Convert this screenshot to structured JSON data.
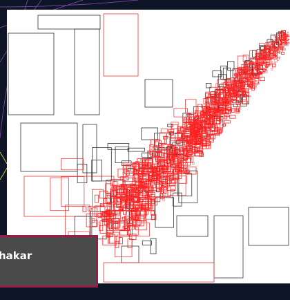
{
  "caption": {
    "text": "hakar"
  }
}
